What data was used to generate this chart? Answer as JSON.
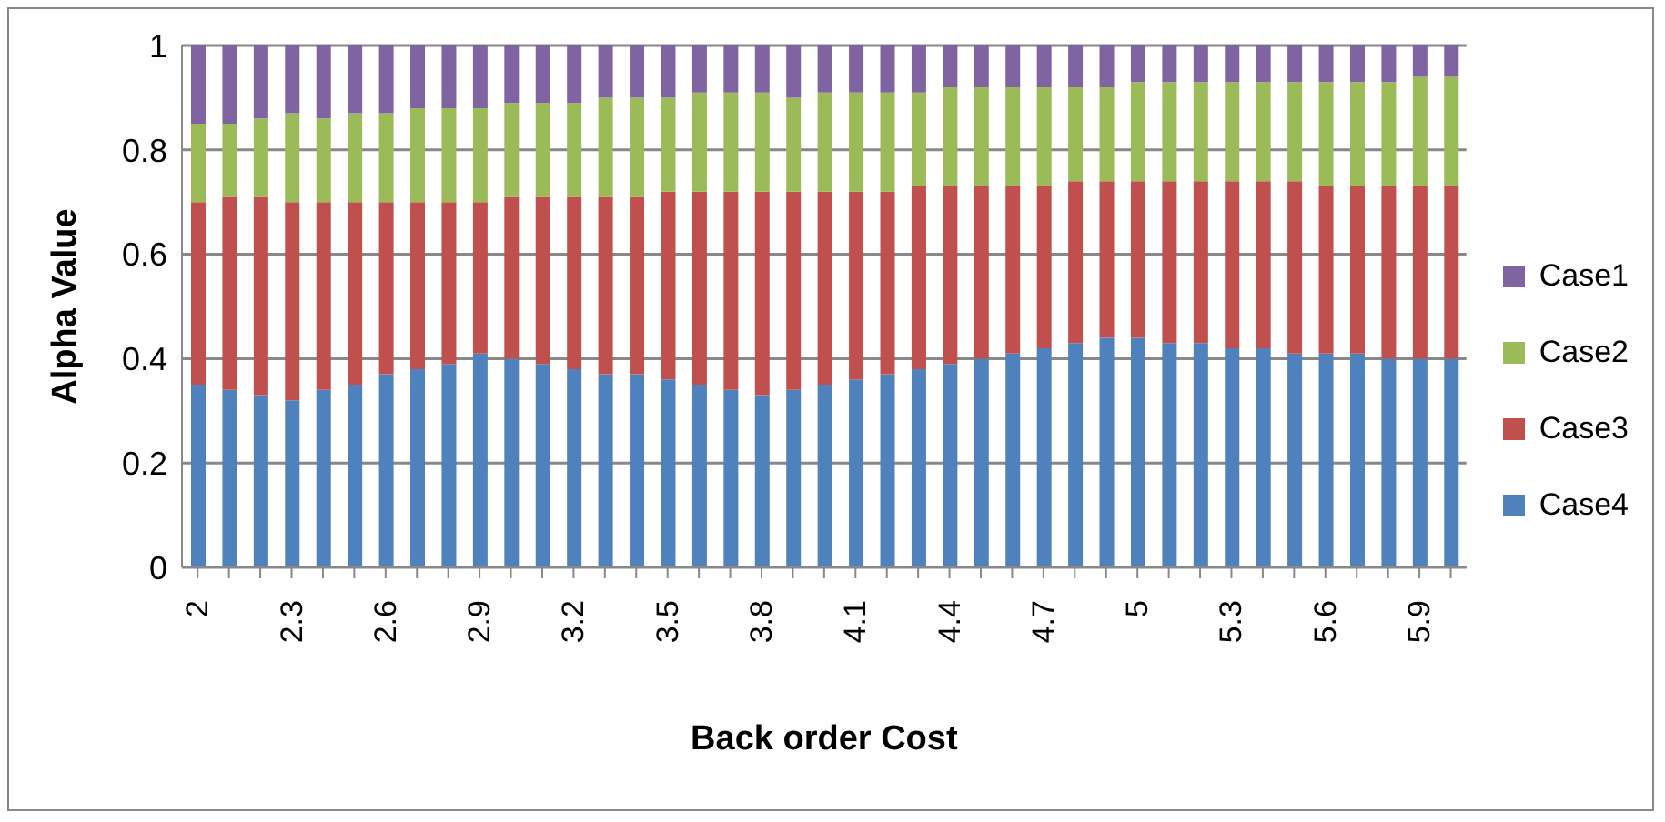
{
  "chart_data": {
    "type": "bar",
    "stacked": true,
    "xlabel": "Back order Cost",
    "ylabel": "Alpha Value",
    "categories": [
      "2",
      null,
      null,
      "2.3",
      null,
      null,
      "2.6",
      null,
      null,
      "2.9",
      null,
      null,
      "3.2",
      null,
      null,
      "3.5",
      null,
      null,
      "3.8",
      null,
      null,
      "4.1",
      null,
      null,
      "4.4",
      null,
      null,
      "4.7",
      null,
      null,
      "5",
      null,
      null,
      "5.3",
      null,
      null,
      "5.6",
      null,
      null,
      "5.9",
      null
    ],
    "series": [
      {
        "name": "Case4",
        "color": "#4f81bd",
        "values": [
          0.35,
          0.34,
          0.33,
          0.32,
          0.34,
          0.35,
          0.37,
          0.38,
          0.39,
          0.41,
          0.4,
          0.39,
          0.38,
          0.37,
          0.37,
          0.36,
          0.35,
          0.34,
          0.33,
          0.34,
          0.35,
          0.36,
          0.37,
          0.38,
          0.39,
          0.4,
          0.41,
          0.42,
          0.43,
          0.44,
          0.44,
          0.43,
          0.43,
          0.42,
          0.42,
          0.41,
          0.41,
          0.41,
          0.4,
          0.4,
          0.4
        ]
      },
      {
        "name": "Case3",
        "color": "#c0504d",
        "values": [
          0.35,
          0.37,
          0.38,
          0.38,
          0.36,
          0.35,
          0.33,
          0.32,
          0.31,
          0.29,
          0.31,
          0.32,
          0.33,
          0.34,
          0.34,
          0.36,
          0.37,
          0.38,
          0.39,
          0.38,
          0.37,
          0.36,
          0.35,
          0.35,
          0.34,
          0.33,
          0.32,
          0.31,
          0.31,
          0.3,
          0.3,
          0.31,
          0.31,
          0.32,
          0.32,
          0.33,
          0.32,
          0.32,
          0.33,
          0.33,
          0.33
        ]
      },
      {
        "name": "Case2",
        "color": "#9bbb59",
        "values": [
          0.15,
          0.14,
          0.15,
          0.17,
          0.16,
          0.17,
          0.17,
          0.18,
          0.18,
          0.18,
          0.18,
          0.18,
          0.18,
          0.19,
          0.19,
          0.18,
          0.19,
          0.19,
          0.19,
          0.18,
          0.19,
          0.19,
          0.19,
          0.18,
          0.19,
          0.19,
          0.19,
          0.19,
          0.18,
          0.18,
          0.19,
          0.19,
          0.19,
          0.19,
          0.19,
          0.19,
          0.2,
          0.2,
          0.2,
          0.21,
          0.21
        ]
      },
      {
        "name": "Case1",
        "color": "#8064a2",
        "values": [
          0.15,
          0.15,
          0.14,
          0.13,
          0.14,
          0.13,
          0.13,
          0.12,
          0.12,
          0.12,
          0.11,
          0.11,
          0.11,
          0.1,
          0.1,
          0.1,
          0.09,
          0.09,
          0.09,
          0.1,
          0.09,
          0.09,
          0.09,
          0.09,
          0.08,
          0.08,
          0.08,
          0.08,
          0.08,
          0.08,
          0.07,
          0.07,
          0.07,
          0.07,
          0.07,
          0.07,
          0.07,
          0.07,
          0.07,
          0.06,
          0.06
        ]
      }
    ],
    "ylim": [
      0,
      1
    ],
    "yticks": [
      0,
      0.2,
      0.4,
      0.6,
      0.8,
      1
    ],
    "grid": "y",
    "legend": "right"
  }
}
